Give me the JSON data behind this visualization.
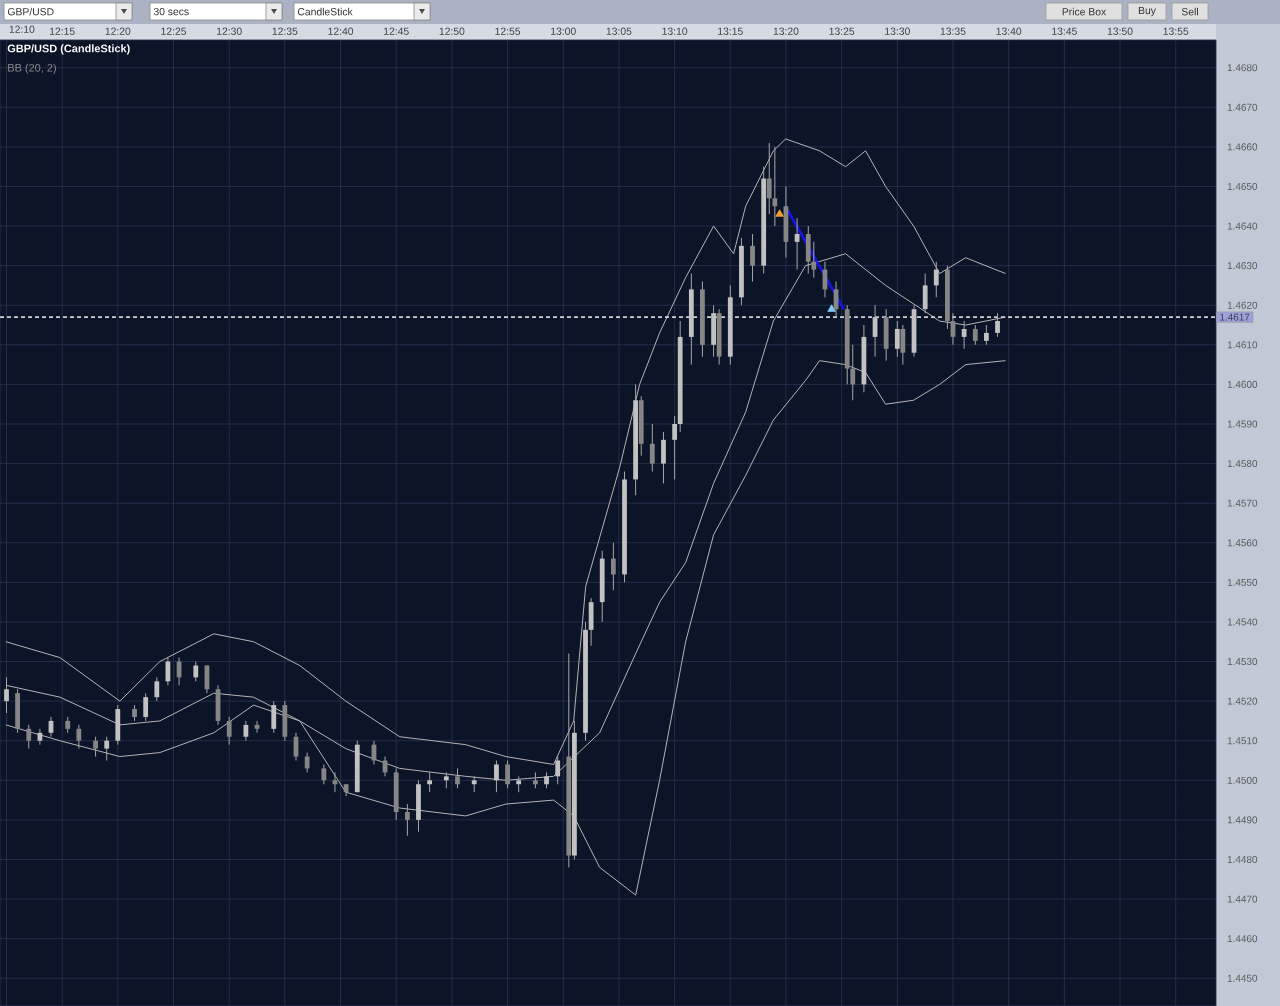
{
  "chart_data": {
    "type": "candlestick",
    "title": "GBP/USD (CandleStick)",
    "annotations": [
      "BB (20, 2)",
      "GBP/USD",
      "30 secs",
      "CandleStick",
      "Price Box",
      "Buy",
      "Sell"
    ],
    "x": [
      12.1667,
      12.1833,
      12.2,
      12.2167,
      12.2333,
      12.2583,
      12.275,
      12.3,
      12.3167,
      12.3333,
      12.3583,
      12.375,
      12.3917,
      12.4083,
      12.425,
      12.45,
      12.4667,
      12.4833,
      12.5,
      12.525,
      12.5417,
      12.5667,
      12.5833,
      12.6,
      12.6167,
      12.6417,
      12.6583,
      12.675,
      12.6917,
      12.7167,
      12.7333,
      12.75,
      12.7667,
      12.7833,
      12.8,
      12.825,
      12.8417,
      12.8667,
      12.9,
      12.9167,
      12.9333,
      12.9583,
      12.975,
      12.9917,
      13.0083,
      13.0167,
      13.0333,
      13.0417,
      13.0583,
      13.075,
      13.0917,
      13.1083,
      13.1167,
      13.1333,
      13.15,
      13.1667,
      13.175,
      13.1917,
      13.2083,
      13.225,
      13.2333,
      13.25,
      13.2667,
      13.2833,
      13.3,
      13.3083,
      13.3167,
      13.3333,
      13.35,
      13.3667,
      13.375,
      13.3917,
      13.4083,
      13.425,
      13.4333,
      13.45,
      13.4667,
      13.4833,
      13.5,
      13.5083,
      13.525,
      13.5417,
      13.5583,
      13.575,
      13.5833,
      13.6,
      13.6167,
      13.6333,
      13.65
    ],
    "ohlc": [
      [
        1.452,
        1.4526,
        1.4517,
        1.4523
      ],
      [
        1.4522,
        1.4523,
        1.4512,
        1.4513
      ],
      [
        1.4513,
        1.4514,
        1.4508,
        1.451
      ],
      [
        1.451,
        1.4513,
        1.4509,
        1.4512
      ],
      [
        1.4512,
        1.4516,
        1.4511,
        1.4515
      ],
      [
        1.4515,
        1.4516,
        1.4512,
        1.4513
      ],
      [
        1.4513,
        1.4514,
        1.4508,
        1.451
      ],
      [
        1.451,
        1.4511,
        1.4506,
        1.4508
      ],
      [
        1.4508,
        1.4511,
        1.4505,
        1.451
      ],
      [
        1.451,
        1.4519,
        1.4509,
        1.4518
      ],
      [
        1.4518,
        1.4519,
        1.4515,
        1.4516
      ],
      [
        1.4516,
        1.4522,
        1.4515,
        1.4521
      ],
      [
        1.4521,
        1.4526,
        1.452,
        1.4525
      ],
      [
        1.4525,
        1.4531,
        1.4524,
        1.453
      ],
      [
        1.453,
        1.4531,
        1.4524,
        1.4526
      ],
      [
        1.4526,
        1.453,
        1.4525,
        1.4529
      ],
      [
        1.4529,
        1.4529,
        1.4522,
        1.4523
      ],
      [
        1.4523,
        1.4524,
        1.4514,
        1.4515
      ],
      [
        1.4515,
        1.4516,
        1.4509,
        1.4511
      ],
      [
        1.4511,
        1.4515,
        1.451,
        1.4514
      ],
      [
        1.4514,
        1.4515,
        1.4512,
        1.4513
      ],
      [
        1.4513,
        1.452,
        1.4512,
        1.4519
      ],
      [
        1.4519,
        1.452,
        1.451,
        1.4511
      ],
      [
        1.4511,
        1.4512,
        1.4505,
        1.4506
      ],
      [
        1.4506,
        1.4507,
        1.4502,
        1.4503
      ],
      [
        1.4503,
        1.4504,
        1.4499,
        1.45
      ],
      [
        1.45,
        1.4502,
        1.4497,
        1.4499
      ],
      [
        1.4499,
        1.4499,
        1.4496,
        1.4497
      ],
      [
        1.4497,
        1.451,
        1.4497,
        1.4509
      ],
      [
        1.4509,
        1.451,
        1.4504,
        1.4505
      ],
      [
        1.4505,
        1.4506,
        1.4501,
        1.4502
      ],
      [
        1.4502,
        1.4503,
        1.449,
        1.4492
      ],
      [
        1.4492,
        1.4494,
        1.4486,
        1.449
      ],
      [
        1.449,
        1.45,
        1.4487,
        1.4499
      ],
      [
        1.4499,
        1.4502,
        1.4497,
        1.45
      ],
      [
        1.45,
        1.4502,
        1.4498,
        1.4501
      ],
      [
        1.4501,
        1.4503,
        1.4498,
        1.4499
      ],
      [
        1.4499,
        1.4501,
        1.4497,
        1.45
      ],
      [
        1.45,
        1.4505,
        1.4497,
        1.4504
      ],
      [
        1.4504,
        1.4505,
        1.4498,
        1.4499
      ],
      [
        1.4499,
        1.4501,
        1.4497,
        1.45
      ],
      [
        1.45,
        1.4502,
        1.4498,
        1.4499
      ],
      [
        1.4499,
        1.4502,
        1.4498,
        1.4501
      ],
      [
        1.4501,
        1.4506,
        1.4499,
        1.4505
      ],
      [
        1.4506,
        1.4532,
        1.4478,
        1.4481
      ],
      [
        1.4481,
        1.4515,
        1.448,
        1.4512
      ],
      [
        1.4512,
        1.454,
        1.451,
        1.4538
      ],
      [
        1.4538,
        1.4546,
        1.4534,
        1.4545
      ],
      [
        1.4545,
        1.4558,
        1.454,
        1.4556
      ],
      [
        1.4556,
        1.456,
        1.4548,
        1.4552
      ],
      [
        1.4552,
        1.4578,
        1.455,
        1.4576
      ],
      [
        1.4576,
        1.46,
        1.4572,
        1.4596
      ],
      [
        1.4596,
        1.4597,
        1.4582,
        1.4585
      ],
      [
        1.4585,
        1.459,
        1.4578,
        1.458
      ],
      [
        1.458,
        1.4588,
        1.4575,
        1.4586
      ],
      [
        1.4586,
        1.4592,
        1.4576,
        1.459
      ],
      [
        1.459,
        1.4616,
        1.4588,
        1.4612
      ],
      [
        1.4612,
        1.4628,
        1.4605,
        1.4624
      ],
      [
        1.4624,
        1.4626,
        1.4607,
        1.461
      ],
      [
        1.461,
        1.462,
        1.4607,
        1.4618
      ],
      [
        1.4618,
        1.4619,
        1.4605,
        1.4607
      ],
      [
        1.4607,
        1.4625,
        1.4605,
        1.4622
      ],
      [
        1.4622,
        1.4637,
        1.462,
        1.4635
      ],
      [
        1.4635,
        1.4638,
        1.4626,
        1.463
      ],
      [
        1.463,
        1.4655,
        1.4628,
        1.4652
      ],
      [
        1.4652,
        1.4661,
        1.4643,
        1.4647
      ],
      [
        1.4647,
        1.466,
        1.464,
        1.4645
      ],
      [
        1.4645,
        1.465,
        1.4632,
        1.4636
      ],
      [
        1.4636,
        1.4642,
        1.4629,
        1.4638
      ],
      [
        1.4638,
        1.464,
        1.4628,
        1.4631
      ],
      [
        1.4631,
        1.4636,
        1.4627,
        1.4629
      ],
      [
        1.4629,
        1.4631,
        1.4622,
        1.4624
      ],
      [
        1.4624,
        1.4626,
        1.4617,
        1.4619
      ],
      [
        1.4619,
        1.462,
        1.46,
        1.4604
      ],
      [
        1.4604,
        1.461,
        1.4596,
        1.46
      ],
      [
        1.46,
        1.4615,
        1.4598,
        1.4612
      ],
      [
        1.4612,
        1.462,
        1.4607,
        1.4617
      ],
      [
        1.4617,
        1.4619,
        1.4606,
        1.4609
      ],
      [
        1.4609,
        1.4616,
        1.4607,
        1.4614
      ],
      [
        1.4614,
        1.4615,
        1.4605,
        1.4608
      ],
      [
        1.4608,
        1.462,
        1.4607,
        1.4619
      ],
      [
        1.4619,
        1.4628,
        1.4618,
        1.4625
      ],
      [
        1.4625,
        1.4631,
        1.4622,
        1.4629
      ],
      [
        1.4629,
        1.463,
        1.4614,
        1.4616
      ],
      [
        1.4616,
        1.4618,
        1.461,
        1.4612
      ],
      [
        1.4612,
        1.4616,
        1.4609,
        1.4614
      ],
      [
        1.4614,
        1.4615,
        1.461,
        1.4611
      ],
      [
        1.4611,
        1.4615,
        1.461,
        1.4613
      ],
      [
        1.4613,
        1.4618,
        1.4612,
        1.4616
      ]
    ],
    "series": [
      {
        "type": "line",
        "color": "#b4b4b4",
        "x": [
          12.1658,
          12.2466,
          12.3364,
          12.3962,
          12.477,
          12.5365,
          12.6056,
          12.6745,
          12.7553,
          12.854,
          12.914,
          12.9856,
          13.0156,
          13.0336,
          13.0844,
          13.1143,
          13.1442,
          13.1832,
          13.225,
          13.255,
          13.273,
          13.3145,
          13.3329,
          13.3836,
          13.4226,
          13.4525,
          13.4825,
          13.5244,
          13.5633,
          13.6022,
          13.662
        ],
        "values": [
          1.4535,
          1.4531,
          1.452,
          1.453,
          1.4537,
          1.4535,
          1.4529,
          1.452,
          1.4511,
          1.4509,
          1.4506,
          1.4504,
          1.4515,
          1.4549,
          1.4579,
          1.46,
          1.4613,
          1.4627,
          1.464,
          1.4633,
          1.4645,
          1.4659,
          1.4662,
          1.4659,
          1.4655,
          1.4659,
          1.465,
          1.464,
          1.4628,
          1.4632,
          1.4628
        ]
      },
      {
        "type": "line",
        "color": "#b4b4b4",
        "x": [
          12.1658,
          12.2466,
          12.3364,
          12.3962,
          12.477,
          12.5365,
          12.6056,
          12.6745,
          12.7553,
          12.854,
          12.914,
          12.9856,
          13.0545,
          13.1084,
          13.1442,
          13.1832,
          13.225,
          13.273,
          13.3145,
          13.3627,
          13.4226,
          13.4825,
          13.5633,
          13.6022,
          13.662
        ],
        "values": [
          1.4524,
          1.4521,
          1.4514,
          1.4515,
          1.4522,
          1.4521,
          1.4515,
          1.4508,
          1.4503,
          1.4501,
          1.45,
          1.4501,
          1.4512,
          1.4532,
          1.4545,
          1.4555,
          1.4575,
          1.4593,
          1.4616,
          1.463,
          1.4633,
          1.4625,
          1.4616,
          1.4615,
          1.4617
        ]
      },
      {
        "type": "line",
        "color": "#b4b4b4",
        "x": [
          12.1658,
          12.2466,
          12.3364,
          12.3962,
          12.477,
          12.5365,
          12.6056,
          12.6745,
          12.7553,
          12.854,
          12.914,
          12.9856,
          13.0156,
          13.0545,
          13.1084,
          13.1442,
          13.1832,
          13.225,
          13.273,
          13.3145,
          13.3627,
          13.3836,
          13.4226,
          13.4525,
          13.4825,
          13.5244,
          13.5633,
          13.6022,
          13.662
        ],
        "values": [
          1.4514,
          1.451,
          1.4506,
          1.4507,
          1.4512,
          1.4519,
          1.4515,
          1.4497,
          1.4493,
          1.4491,
          1.4494,
          1.4495,
          1.4491,
          1.4478,
          1.4471,
          1.45,
          1.4535,
          1.4562,
          1.4577,
          1.4591,
          1.4601,
          1.4606,
          1.4605,
          1.4603,
          1.4595,
          1.4596,
          1.46,
          1.4605,
          1.4606
        ]
      },
      {
        "type": "line",
        "color": "#1414e6",
        "x": [
          13.336,
          13.4198
        ],
        "values": [
          1.4644,
          1.4619
        ]
      },
      {
        "type": "scatter",
        "marker": "triangle",
        "color": "#f0a030",
        "x": [
          13.3238
        ],
        "values": [
          1.4643
        ]
      },
      {
        "type": "scatter",
        "marker": "triangle",
        "color": "#80c8f0",
        "x": [
          13.4016
        ],
        "values": [
          1.4619
        ]
      }
    ],
    "ref_lines": [
      {
        "axis": "y",
        "value": 1.4617,
        "label": "1.4617",
        "color": "#d0d0d0",
        "line_style": "dashed"
      }
    ],
    "xlim": [
      12.157,
      13.977
    ],
    "ylim": [
      1.4443,
      1.4687
    ],
    "xticks": [
      {
        "value": 12.1667,
        "label": "12:10"
      },
      {
        "value": 12.25,
        "label": "12:15"
      },
      {
        "value": 12.3333,
        "label": "12:20"
      },
      {
        "value": 12.4167,
        "label": "12:25"
      },
      {
        "value": 12.5,
        "label": "12:30"
      },
      {
        "value": 12.5833,
        "label": "12:35"
      },
      {
        "value": 12.6667,
        "label": "12:40"
      },
      {
        "value": 12.75,
        "label": "12:45"
      },
      {
        "value": 12.8333,
        "label": "12:50"
      },
      {
        "value": 12.9167,
        "label": "12:55"
      },
      {
        "value": 13.0,
        "label": "13:00"
      },
      {
        "value": 13.0833,
        "label": "13:05"
      },
      {
        "value": 13.1667,
        "label": "13:10"
      },
      {
        "value": 13.25,
        "label": "13:15"
      },
      {
        "value": 13.3333,
        "label": "13:20"
      },
      {
        "value": 13.4167,
        "label": "13:25"
      },
      {
        "value": 13.5,
        "label": "13:30"
      },
      {
        "value": 13.5833,
        "label": "13:35"
      },
      {
        "value": 13.6667,
        "label": "13:40"
      },
      {
        "value": 13.75,
        "label": "13:45"
      },
      {
        "value": 13.8333,
        "label": "13:50"
      },
      {
        "value": 13.9167,
        "label": "13:55"
      }
    ],
    "yticks": [
      {
        "value": 1.445,
        "label": "1.4450"
      },
      {
        "value": 1.446,
        "label": "1.4460"
      },
      {
        "value": 1.447,
        "label": "1.4470"
      },
      {
        "value": 1.448,
        "label": "1.4480"
      },
      {
        "value": 1.449,
        "label": "1.4490"
      },
      {
        "value": 1.45,
        "label": "1.4500"
      },
      {
        "value": 1.451,
        "label": "1.4510"
      },
      {
        "value": 1.452,
        "label": "1.4520"
      },
      {
        "value": 1.453,
        "label": "1.4530"
      },
      {
        "value": 1.454,
        "label": "1.4540"
      },
      {
        "value": 1.455,
        "label": "1.4550"
      },
      {
        "value": 1.456,
        "label": "1.4560"
      },
      {
        "value": 1.457,
        "label": "1.4570"
      },
      {
        "value": 1.458,
        "label": "1.4580"
      },
      {
        "value": 1.459,
        "label": "1.4590"
      },
      {
        "value": 1.46,
        "label": "1.4600"
      },
      {
        "value": 1.461,
        "label": "1.4610"
      },
      {
        "value": 1.462,
        "label": "1.4620"
      },
      {
        "value": 1.463,
        "label": "1.4630"
      },
      {
        "value": 1.464,
        "label": "1.4640"
      },
      {
        "value": 1.465,
        "label": "1.4650"
      },
      {
        "value": 1.466,
        "label": "1.4660"
      },
      {
        "value": 1.467,
        "label": "1.4670"
      },
      {
        "value": 1.468,
        "label": "1.4680"
      }
    ],
    "grid": true
  }
}
